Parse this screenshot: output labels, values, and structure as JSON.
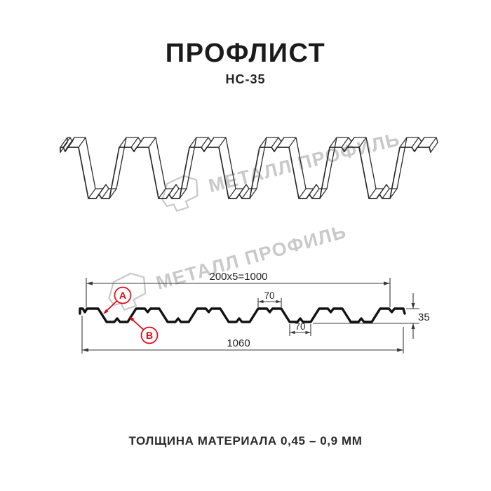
{
  "page": {
    "title": "ПРОФЛИСТ",
    "subtitle": "НС-35",
    "footer": "ТОЛЩИНА МАТЕРИАЛА 0,45 – 0,9 ММ"
  },
  "watermark": {
    "brand": "МЕТАЛЛ ПРОФИЛЬ"
  },
  "diagram": {
    "dim_top_width": "200x5=1000",
    "dim_rib_top": "70",
    "dim_rib_bottom": "70",
    "dim_height": "35",
    "dim_total_width": "1060",
    "callout_a": "А",
    "callout_b": "В"
  },
  "colors": {
    "accent_red": "#e30613",
    "drawing_line": "#2b2b2b",
    "profile_line": "#111111",
    "watermark_gray": "#c9c9c9"
  }
}
